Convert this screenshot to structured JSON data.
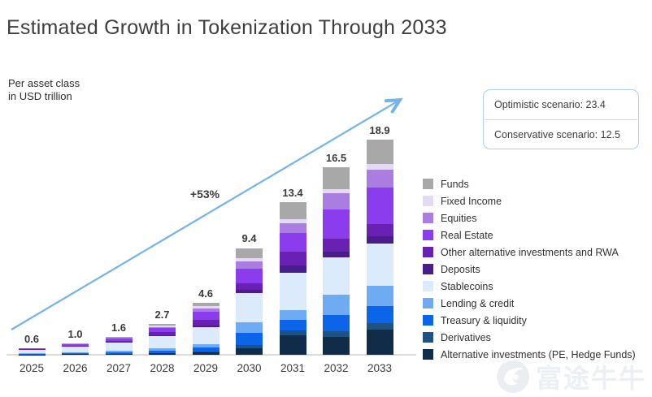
{
  "page": {
    "title": "Estimated Growth in Tokenization Through 2033",
    "subtitle_line1": "Per asset class",
    "subtitle_line2": "in USD trillion"
  },
  "scenario_box": {
    "optimistic_label": "Optimistic scenario: 23.4",
    "conservative_label": "Conservative scenario: 12.5"
  },
  "annotation": {
    "growth_label": "+53%"
  },
  "watermark": {
    "brand_text": "富途牛牛"
  },
  "chart_data": {
    "type": "bar",
    "stacked": true,
    "title": "Estimated Growth in Tokenization Through 2033",
    "unit": "USD trillion",
    "categories": [
      "2025",
      "2026",
      "2027",
      "2028",
      "2029",
      "2030",
      "2031",
      "2032",
      "2033"
    ],
    "totals": [
      0.6,
      1.0,
      1.6,
      2.7,
      4.6,
      9.4,
      13.4,
      16.5,
      18.9
    ],
    "scenarios": {
      "optimistic_2033": 23.4,
      "conservative_2033": 12.5
    },
    "growth_annotation": "+53%",
    "axis": {
      "x_label": "",
      "y_label": "Per asset class in USD trillion",
      "gridlines": false,
      "y_axis_hidden": true
    },
    "legend_position": "right",
    "series_bottom_to_top": [
      {
        "name": "Alternative investments (PE, Hedge Funds)",
        "color": "#102c48",
        "values": [
          0.02,
          0.04,
          0.07,
          0.12,
          0.2,
          0.55,
          1.7,
          1.6,
          2.2
        ]
      },
      {
        "name": "Derivatives",
        "color": "#1d5285",
        "values": [
          0.01,
          0.02,
          0.03,
          0.05,
          0.1,
          0.3,
          0.45,
          0.5,
          0.6
        ]
      },
      {
        "name": "Treasury & liquidity",
        "color": "#0c64e8",
        "values": [
          0.07,
          0.1,
          0.13,
          0.2,
          0.35,
          1.05,
          0.95,
          1.4,
          1.5
        ]
      },
      {
        "name": "Lending & credit",
        "color": "#6fabf2",
        "values": [
          0.05,
          0.08,
          0.12,
          0.18,
          0.3,
          0.95,
          0.85,
          1.8,
          1.8
        ]
      },
      {
        "name": "Stablecoins",
        "color": "#dcebfc",
        "values": [
          0.26,
          0.45,
          0.7,
          1.1,
          1.45,
          2.55,
          3.3,
          3.3,
          3.7
        ]
      },
      {
        "name": "Deposits",
        "color": "#491d8b",
        "values": [
          0.02,
          0.03,
          0.05,
          0.1,
          0.2,
          0.3,
          0.6,
          0.5,
          0.6
        ]
      },
      {
        "name": "Other alternative investments and RWA",
        "color": "#6921b4",
        "values": [
          0.05,
          0.08,
          0.15,
          0.25,
          0.5,
          0.6,
          1.2,
          1.1,
          1.1
        ]
      },
      {
        "name": "Real Estate",
        "color": "#8b3cec",
        "values": [
          0.07,
          0.12,
          0.2,
          0.35,
          0.7,
          1.3,
          1.65,
          2.6,
          3.2
        ]
      },
      {
        "name": "Equities",
        "color": "#a97ee0",
        "values": [
          0.02,
          0.03,
          0.05,
          0.1,
          0.3,
          0.65,
          0.9,
          1.4,
          1.6
        ]
      },
      {
        "name": "Fixed Income",
        "color": "#e6d9f6",
        "values": [
          0.01,
          0.02,
          0.04,
          0.1,
          0.2,
          0.25,
          0.3,
          0.4,
          0.5
        ]
      },
      {
        "name": "Funds",
        "color": "#a8a8a8",
        "values": [
          0.02,
          0.03,
          0.06,
          0.15,
          0.3,
          0.9,
          1.5,
          1.9,
          2.1
        ]
      }
    ],
    "arrow_color": "#74b2ea"
  }
}
